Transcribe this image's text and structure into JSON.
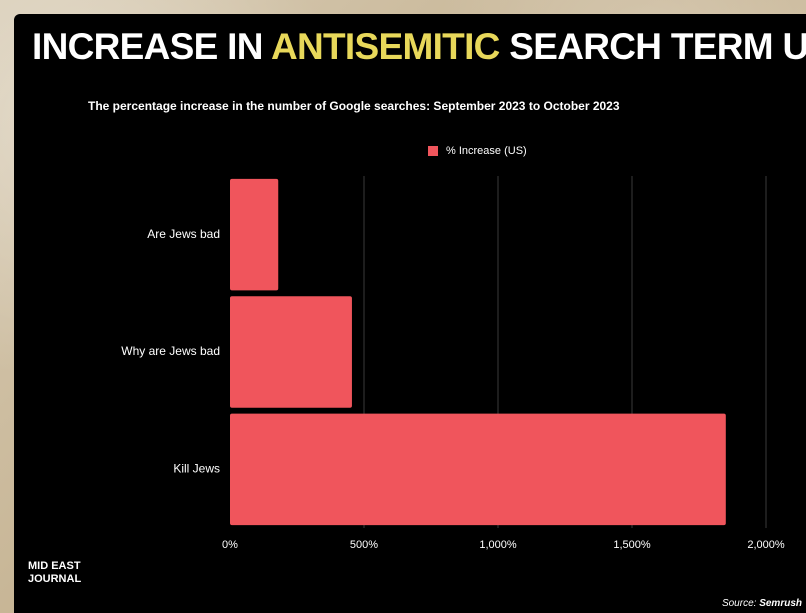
{
  "header": {
    "title_before": "INCREASE IN ",
    "title_highlight": "ANTISEMITIC",
    "title_after": " SEARCH TERM USAGE",
    "subtitle": "The percentage increase in the number of Google searches:  September 2023 to October 2023"
  },
  "legend": {
    "label": "% Increase (US)"
  },
  "footer": {
    "brand": "MID EAST JOURNAL",
    "source_label": "Source: ",
    "source_name": "Semrush"
  },
  "colors": {
    "background": "#000000",
    "bar": "#f0555c",
    "highlight": "#e8d85a",
    "text": "#ffffff",
    "grid": "#3a3a3a"
  },
  "chart_data": {
    "type": "bar",
    "orientation": "horizontal",
    "title": "INCREASE IN ANTISEMITIC SEARCH TERM USAGE",
    "subtitle": "The percentage increase in the number of Google searches:  September 2023 to October 2023",
    "categories": [
      "Are Jews bad",
      "Why are Jews bad",
      "Kill Jews"
    ],
    "series": [
      {
        "name": "% Increase (US)",
        "values": [
          180,
          455,
          1850
        ]
      }
    ],
    "xlim": [
      0,
      2000
    ],
    "xticks": [
      0,
      500,
      1000,
      1500,
      2000
    ],
    "xtick_labels": [
      "0%",
      "500%",
      "1,000%",
      "1,500%",
      "2,000%"
    ],
    "xlabel": "",
    "ylabel": "",
    "grid": true,
    "legend_position": "top"
  }
}
